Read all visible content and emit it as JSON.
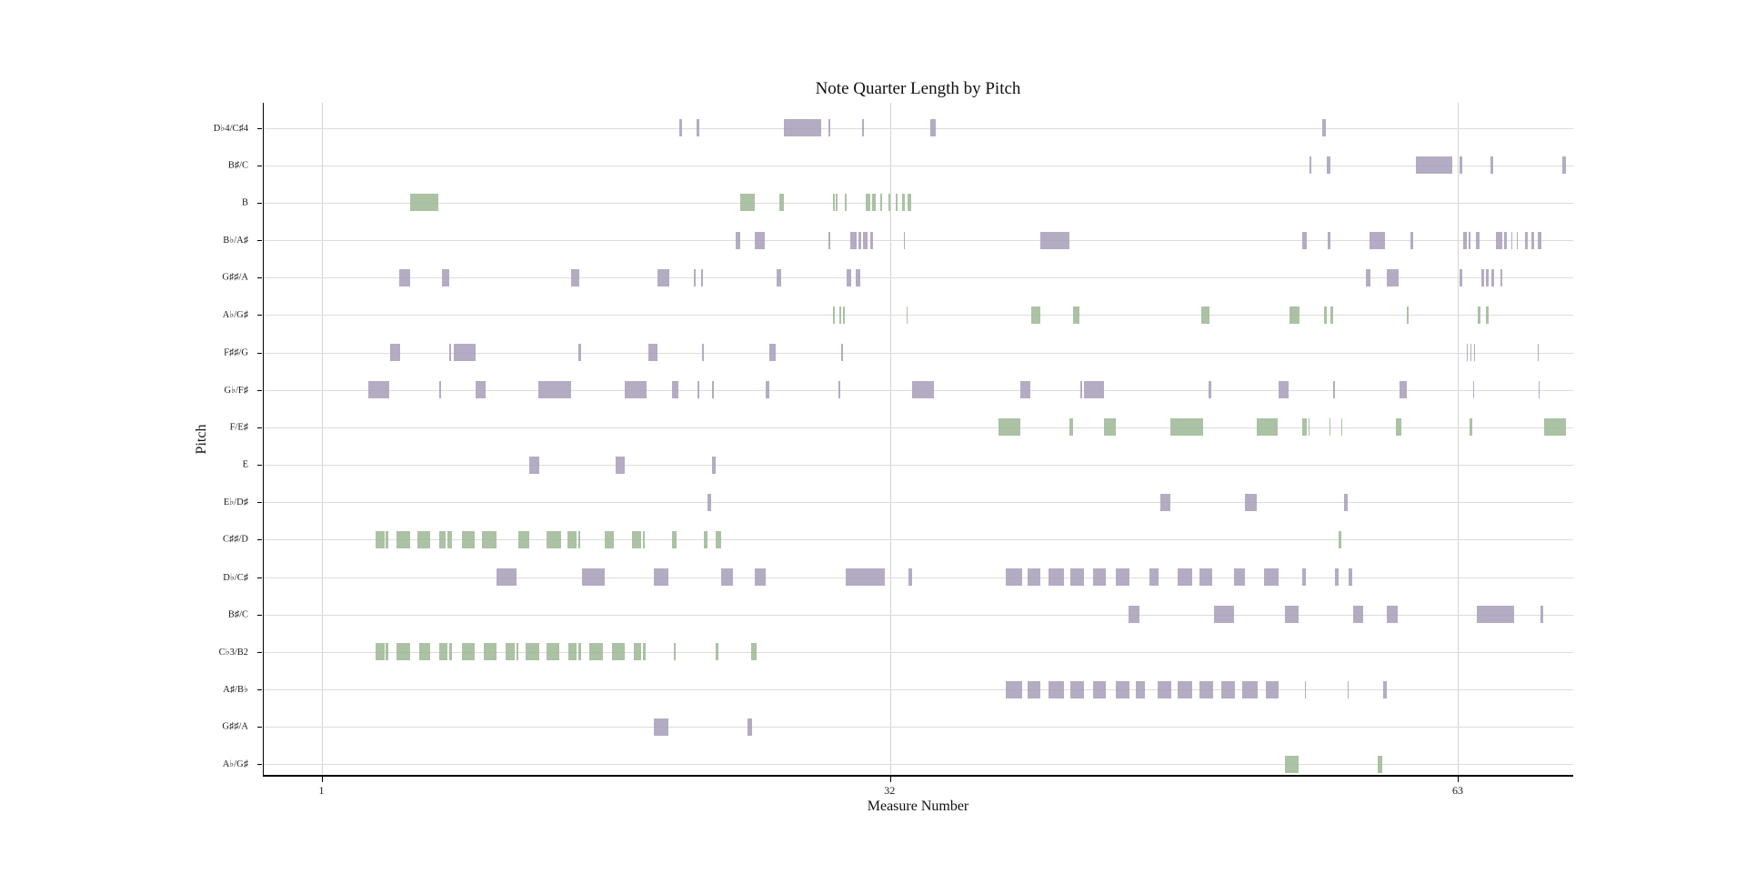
{
  "chart_data": {
    "type": "bar",
    "subtype": "broken-horizontal-bar-piano-roll",
    "title": "Note Quarter Length by Pitch",
    "xlabel": "Measure Number",
    "ylabel": "Pitch",
    "x_ticks": [
      1,
      32,
      63
    ],
    "x_range": [
      -2.2,
      69.3
    ],
    "grid": "horizontal-per-pitch-and-vertical-per-tick",
    "legend": "none",
    "colors": {
      "purple": "#a79db9",
      "green": "#9cb794"
    },
    "rows": [
      {
        "label": "D♭4/C♯4",
        "color": "purple",
        "bars": [
          [
            20.5,
            0.15
          ],
          [
            21.45,
            0.12
          ],
          [
            26.2,
            2.05
          ],
          [
            28.65,
            0.1
          ],
          [
            30.45,
            0.1
          ],
          [
            34.2,
            0.3
          ],
          [
            55.6,
            0.2
          ]
        ]
      },
      {
        "label": "B♯/C",
        "color": "purple",
        "bars": [
          [
            54.9,
            0.1
          ],
          [
            55.85,
            0.2
          ],
          [
            60.7,
            2.0
          ],
          [
            63.1,
            0.12
          ],
          [
            64.8,
            0.15
          ],
          [
            68.7,
            0.2
          ]
        ]
      },
      {
        "label": "B",
        "color": "green",
        "bars": [
          [
            5.8,
            1.55
          ],
          [
            23.8,
            0.8
          ],
          [
            25.95,
            0.25
          ],
          [
            28.9,
            0.06
          ],
          [
            29.05,
            0.06
          ],
          [
            29.55,
            0.1
          ],
          [
            30.65,
            0.25
          ],
          [
            31.0,
            0.2
          ],
          [
            31.45,
            0.1
          ],
          [
            31.9,
            0.1
          ],
          [
            32.3,
            0.1
          ],
          [
            32.65,
            0.18
          ],
          [
            32.95,
            0.18
          ]
        ]
      },
      {
        "label": "B♭/A♯",
        "color": "purple",
        "bars": [
          [
            23.55,
            0.25
          ],
          [
            24.6,
            0.55
          ],
          [
            28.65,
            0.08
          ],
          [
            29.85,
            0.3
          ],
          [
            30.25,
            0.15
          ],
          [
            30.5,
            0.25
          ],
          [
            30.9,
            0.18
          ],
          [
            32.75,
            0.08
          ],
          [
            40.2,
            1.6
          ],
          [
            54.5,
            0.25
          ],
          [
            55.9,
            0.15
          ],
          [
            58.2,
            0.8
          ],
          [
            60.4,
            0.18
          ],
          [
            63.3,
            0.2
          ],
          [
            63.6,
            0.1
          ],
          [
            64.0,
            0.18
          ],
          [
            65.1,
            0.35
          ],
          [
            65.55,
            0.15
          ],
          [
            65.9,
            0.08
          ],
          [
            66.2,
            0.08
          ],
          [
            66.65,
            0.15
          ],
          [
            67.0,
            0.15
          ],
          [
            67.35,
            0.2
          ]
        ]
      },
      {
        "label": "G♯♯/A",
        "color": "purple",
        "bars": [
          [
            5.2,
            0.6
          ],
          [
            7.55,
            0.4
          ],
          [
            14.6,
            0.45
          ],
          [
            19.3,
            0.65
          ],
          [
            21.3,
            0.1
          ],
          [
            21.7,
            0.1
          ],
          [
            25.8,
            0.25
          ],
          [
            29.65,
            0.25
          ],
          [
            30.1,
            0.25
          ],
          [
            58.0,
            0.25
          ],
          [
            59.1,
            0.65
          ],
          [
            63.1,
            0.15
          ],
          [
            64.3,
            0.15
          ],
          [
            64.55,
            0.15
          ],
          [
            64.85,
            0.12
          ],
          [
            65.35,
            0.1
          ]
        ]
      },
      {
        "label": "A♭/G♯",
        "color": "green",
        "bars": [
          [
            28.9,
            0.06
          ],
          [
            29.25,
            0.06
          ],
          [
            29.45,
            0.06
          ],
          [
            32.9,
            0.06
          ],
          [
            39.7,
            0.5
          ],
          [
            42.0,
            0.35
          ],
          [
            49.0,
            0.45
          ],
          [
            53.8,
            0.55
          ],
          [
            55.7,
            0.12
          ],
          [
            56.05,
            0.12
          ],
          [
            60.2,
            0.12
          ],
          [
            64.1,
            0.12
          ],
          [
            64.55,
            0.12
          ]
        ]
      },
      {
        "label": "F♯♯/G",
        "color": "purple",
        "bars": [
          [
            4.7,
            0.55
          ],
          [
            7.95,
            0.1
          ],
          [
            8.2,
            1.15
          ],
          [
            15.0,
            0.15
          ],
          [
            18.8,
            0.5
          ],
          [
            21.75,
            0.06
          ],
          [
            25.4,
            0.35
          ],
          [
            29.35,
            0.1
          ],
          [
            63.5,
            0.05
          ],
          [
            63.7,
            0.05
          ],
          [
            63.9,
            0.05
          ],
          [
            67.35,
            0.05
          ]
        ]
      },
      {
        "label": "G♭/F♯",
        "color": "purple",
        "bars": [
          [
            3.5,
            1.15
          ],
          [
            7.4,
            0.1
          ],
          [
            9.35,
            0.55
          ],
          [
            12.8,
            1.8
          ],
          [
            17.5,
            1.2
          ],
          [
            20.1,
            0.35
          ],
          [
            21.5,
            0.08
          ],
          [
            22.3,
            0.06
          ],
          [
            25.2,
            0.2
          ],
          [
            29.2,
            0.06
          ],
          [
            33.2,
            1.2
          ],
          [
            39.1,
            0.55
          ],
          [
            42.4,
            0.1
          ],
          [
            42.6,
            1.1
          ],
          [
            49.4,
            0.15
          ],
          [
            53.2,
            0.55
          ],
          [
            56.2,
            0.08
          ],
          [
            59.8,
            0.4
          ],
          [
            63.85,
            0.05
          ],
          [
            67.4,
            0.05
          ]
        ]
      },
      {
        "label": "F/E♯",
        "color": "green",
        "bars": [
          [
            37.9,
            1.2
          ],
          [
            41.8,
            0.2
          ],
          [
            43.7,
            0.65
          ],
          [
            47.3,
            1.8
          ],
          [
            52.0,
            1.15
          ],
          [
            54.5,
            0.25
          ],
          [
            54.85,
            0.06
          ],
          [
            56.0,
            0.06
          ],
          [
            56.65,
            0.06
          ],
          [
            59.6,
            0.3
          ],
          [
            63.65,
            0.15
          ],
          [
            67.7,
            1.2
          ]
        ]
      },
      {
        "label": "E",
        "color": "purple",
        "bars": [
          [
            12.3,
            0.55
          ],
          [
            17.0,
            0.5
          ],
          [
            22.3,
            0.2
          ]
        ]
      },
      {
        "label": "E♭/D♯",
        "color": "purple",
        "bars": [
          [
            22.05,
            0.18
          ],
          [
            46.75,
            0.55
          ],
          [
            51.4,
            0.6
          ],
          [
            56.8,
            0.18
          ]
        ]
      },
      {
        "label": "C♯♯/D",
        "color": "green",
        "bars": [
          [
            3.9,
            0.5
          ],
          [
            4.45,
            0.15
          ],
          [
            5.05,
            0.75
          ],
          [
            6.2,
            0.7
          ],
          [
            7.4,
            0.35
          ],
          [
            7.82,
            0.28
          ],
          [
            8.6,
            0.7
          ],
          [
            9.7,
            0.8
          ],
          [
            11.7,
            0.6
          ],
          [
            13.25,
            0.8
          ],
          [
            14.4,
            0.5
          ],
          [
            15.0,
            0.1
          ],
          [
            16.4,
            0.5
          ],
          [
            17.9,
            0.5
          ],
          [
            18.52,
            0.1
          ],
          [
            20.1,
            0.25
          ],
          [
            21.85,
            0.18
          ],
          [
            22.5,
            0.3
          ],
          [
            56.5,
            0.15
          ]
        ]
      },
      {
        "label": "D♭/C♯",
        "color": "purple",
        "bars": [
          [
            10.5,
            1.1
          ],
          [
            15.2,
            1.2
          ],
          [
            19.1,
            0.8
          ],
          [
            22.8,
            0.6
          ],
          [
            24.6,
            0.6
          ],
          [
            29.6,
            2.1
          ],
          [
            33.0,
            0.2
          ],
          [
            38.3,
            0.9
          ],
          [
            39.5,
            0.7
          ],
          [
            40.65,
            0.85
          ],
          [
            41.85,
            0.75
          ],
          [
            43.1,
            0.7
          ],
          [
            44.3,
            0.75
          ],
          [
            46.15,
            0.5
          ],
          [
            47.7,
            0.8
          ],
          [
            48.9,
            0.7
          ],
          [
            50.8,
            0.6
          ],
          [
            52.4,
            0.8
          ],
          [
            54.5,
            0.2
          ],
          [
            56.3,
            0.2
          ],
          [
            57.05,
            0.2
          ]
        ]
      },
      {
        "label": "B♯/C",
        "color": "purple",
        "bars": [
          [
            45.0,
            0.6
          ],
          [
            49.7,
            1.1
          ],
          [
            53.55,
            0.75
          ],
          [
            57.3,
            0.55
          ],
          [
            59.1,
            0.6
          ],
          [
            64.05,
            2.0
          ],
          [
            67.5,
            0.15
          ]
        ]
      },
      {
        "label": "C♭3/B2",
        "color": "green",
        "bars": [
          [
            3.9,
            0.5
          ],
          [
            4.45,
            0.15
          ],
          [
            5.05,
            0.75
          ],
          [
            6.3,
            0.6
          ],
          [
            7.4,
            0.45
          ],
          [
            7.95,
            0.15
          ],
          [
            8.6,
            0.7
          ],
          [
            9.8,
            0.7
          ],
          [
            11.0,
            0.5
          ],
          [
            11.6,
            0.12
          ],
          [
            12.1,
            0.75
          ],
          [
            13.25,
            0.7
          ],
          [
            14.45,
            0.45
          ],
          [
            15.0,
            0.15
          ],
          [
            15.6,
            0.7
          ],
          [
            16.8,
            0.7
          ],
          [
            18.0,
            0.4
          ],
          [
            18.5,
            0.15
          ],
          [
            20.2,
            0.1
          ],
          [
            22.5,
            0.15
          ],
          [
            24.4,
            0.3
          ]
        ]
      },
      {
        "label": "A♯/B♭",
        "color": "purple",
        "bars": [
          [
            38.3,
            0.9
          ],
          [
            39.5,
            0.7
          ],
          [
            40.65,
            0.85
          ],
          [
            41.85,
            0.75
          ],
          [
            43.1,
            0.7
          ],
          [
            44.3,
            0.75
          ],
          [
            45.4,
            0.5
          ],
          [
            46.6,
            0.75
          ],
          [
            47.7,
            0.8
          ],
          [
            48.9,
            0.75
          ],
          [
            50.1,
            0.75
          ],
          [
            51.25,
            0.8
          ],
          [
            52.5,
            0.7
          ],
          [
            54.65,
            0.05
          ],
          [
            57.0,
            0.05
          ],
          [
            58.9,
            0.2
          ]
        ]
      },
      {
        "label": "G♯♯/A",
        "color": "purple",
        "bars": [
          [
            19.1,
            0.8
          ],
          [
            24.2,
            0.25
          ]
        ]
      },
      {
        "label": "A♭/G♯",
        "color": "green",
        "bars": [
          [
            53.55,
            0.75
          ],
          [
            58.6,
            0.25
          ]
        ]
      }
    ]
  }
}
